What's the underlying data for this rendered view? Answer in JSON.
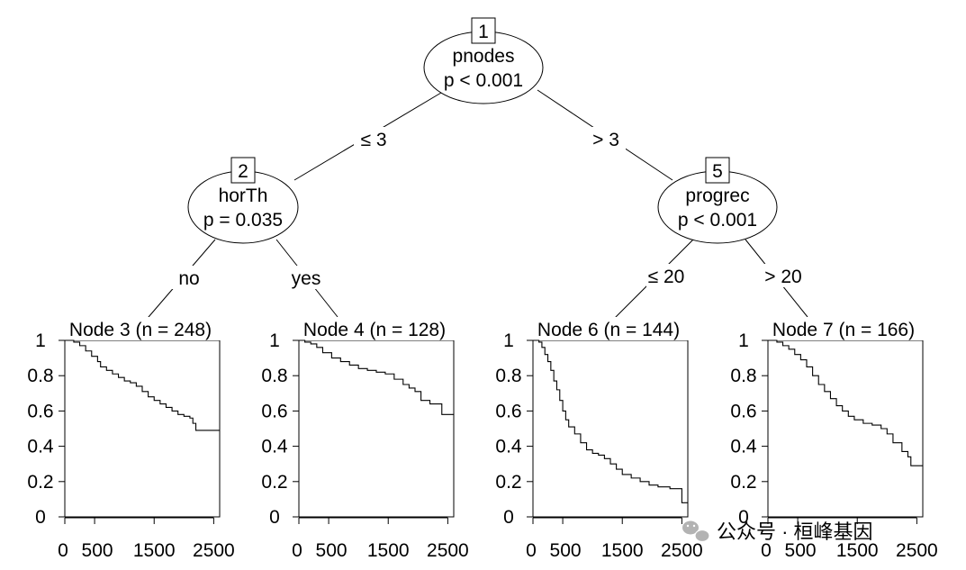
{
  "watermark": "公众号 · 桓峰基因",
  "icons": {
    "watermark_logo": "wechat-icon"
  },
  "chart_data": {
    "type": "tree",
    "inner_nodes": [
      {
        "id": "1",
        "variable": "pnodes",
        "pvalue": "p < 0.001"
      },
      {
        "id": "2",
        "variable": "horTh",
        "pvalue": "p = 0.035"
      },
      {
        "id": "5",
        "variable": "progrec",
        "pvalue": "p < 0.001"
      }
    ],
    "edges": [
      {
        "from": "1",
        "to": "2",
        "label": "≤ 3"
      },
      {
        "from": "1",
        "to": "5",
        "label": "> 3"
      },
      {
        "from": "2",
        "to": "3",
        "label": "no"
      },
      {
        "from": "2",
        "to": "4",
        "label": "yes"
      },
      {
        "from": "5",
        "to": "6",
        "label": "≤ 20"
      },
      {
        "from": "5",
        "to": "7",
        "label": "> 20"
      }
    ],
    "terminal_nodes": [
      {
        "id": "3",
        "title": "Node 3 (n = 248)",
        "type": "line",
        "xlim": [
          0,
          2600
        ],
        "ylim": [
          0,
          1
        ],
        "xticks": [
          0,
          500,
          1500,
          2500
        ],
        "xtick_labels": [
          "0",
          "500",
          "1500",
          "2500"
        ],
        "yticks": [
          0,
          0.2,
          0.4,
          0.6,
          0.8,
          1
        ],
        "ytick_labels": [
          "0",
          "0.2",
          "0.4",
          "0.6",
          "0.8",
          "1"
        ],
        "points": [
          [
            0,
            1
          ],
          [
            150,
            0.99
          ],
          [
            250,
            0.97
          ],
          [
            350,
            0.94
          ],
          [
            450,
            0.91
          ],
          [
            550,
            0.88
          ],
          [
            600,
            0.85
          ],
          [
            700,
            0.83
          ],
          [
            800,
            0.81
          ],
          [
            900,
            0.79
          ],
          [
            1000,
            0.77
          ],
          [
            1100,
            0.76
          ],
          [
            1200,
            0.74
          ],
          [
            1300,
            0.71
          ],
          [
            1400,
            0.68
          ],
          [
            1500,
            0.66
          ],
          [
            1600,
            0.64
          ],
          [
            1700,
            0.62
          ],
          [
            1800,
            0.6
          ],
          [
            1900,
            0.58
          ],
          [
            2000,
            0.57
          ],
          [
            2100,
            0.56
          ],
          [
            2150,
            0.53
          ],
          [
            2200,
            0.49
          ],
          [
            2350,
            0.49
          ],
          [
            2500,
            0.49
          ]
        ]
      },
      {
        "id": "4",
        "title": "Node 4 (n = 128)",
        "type": "line",
        "xlim": [
          0,
          2600
        ],
        "ylim": [
          0,
          1
        ],
        "xticks": [
          0,
          500,
          1500,
          2500
        ],
        "xtick_labels": [
          "0",
          "500",
          "1500",
          "2500"
        ],
        "yticks": [
          0,
          0.2,
          0.4,
          0.6,
          0.8,
          1
        ],
        "ytick_labels": [
          "0",
          "0.2",
          "0.4",
          "0.6",
          "0.8",
          "1"
        ],
        "points": [
          [
            0,
            1
          ],
          [
            100,
            0.99
          ],
          [
            200,
            0.98
          ],
          [
            300,
            0.96
          ],
          [
            400,
            0.93
          ],
          [
            550,
            0.9
          ],
          [
            700,
            0.88
          ],
          [
            850,
            0.86
          ],
          [
            1000,
            0.84
          ],
          [
            1150,
            0.83
          ],
          [
            1300,
            0.82
          ],
          [
            1450,
            0.81
          ],
          [
            1600,
            0.78
          ],
          [
            1750,
            0.75
          ],
          [
            1850,
            0.73
          ],
          [
            1950,
            0.71
          ],
          [
            2050,
            0.66
          ],
          [
            2200,
            0.64
          ],
          [
            2400,
            0.58
          ],
          [
            2500,
            0.58
          ]
        ]
      },
      {
        "id": "6",
        "title": "Node 6 (n = 144)",
        "type": "line",
        "xlim": [
          0,
          2600
        ],
        "ylim": [
          0,
          1
        ],
        "xticks": [
          0,
          500,
          1500,
          2500
        ],
        "xtick_labels": [
          "0",
          "500",
          "1500",
          "2500"
        ],
        "yticks": [
          0,
          0.2,
          0.4,
          0.6,
          0.8,
          1
        ],
        "ytick_labels": [
          "0",
          "0.2",
          "0.4",
          "0.6",
          "0.8",
          "1"
        ],
        "points": [
          [
            0,
            1
          ],
          [
            100,
            0.99
          ],
          [
            150,
            0.96
          ],
          [
            200,
            0.92
          ],
          [
            250,
            0.88
          ],
          [
            300,
            0.83
          ],
          [
            350,
            0.77
          ],
          [
            400,
            0.72
          ],
          [
            450,
            0.66
          ],
          [
            500,
            0.6
          ],
          [
            550,
            0.55
          ],
          [
            600,
            0.51
          ],
          [
            700,
            0.47
          ],
          [
            800,
            0.42
          ],
          [
            900,
            0.38
          ],
          [
            1000,
            0.36
          ],
          [
            1100,
            0.35
          ],
          [
            1200,
            0.33
          ],
          [
            1300,
            0.3
          ],
          [
            1400,
            0.27
          ],
          [
            1500,
            0.24
          ],
          [
            1650,
            0.22
          ],
          [
            1800,
            0.2
          ],
          [
            1950,
            0.18
          ],
          [
            2100,
            0.17
          ],
          [
            2300,
            0.16
          ],
          [
            2450,
            0.16
          ],
          [
            2500,
            0.08
          ]
        ]
      },
      {
        "id": "7",
        "title": "Node 7 (n = 166)",
        "type": "line",
        "xlim": [
          0,
          2600
        ],
        "ylim": [
          0,
          1
        ],
        "xticks": [
          0,
          500,
          1500,
          2500
        ],
        "xtick_labels": [
          "0",
          "500",
          "1500",
          "2500"
        ],
        "yticks": [
          0,
          0.2,
          0.4,
          0.6,
          0.8,
          1
        ],
        "ytick_labels": [
          "0",
          "0.2",
          "0.4",
          "0.6",
          "0.8",
          "1"
        ],
        "points": [
          [
            0,
            1
          ],
          [
            150,
            0.99
          ],
          [
            250,
            0.97
          ],
          [
            350,
            0.95
          ],
          [
            450,
            0.92
          ],
          [
            550,
            0.89
          ],
          [
            650,
            0.85
          ],
          [
            750,
            0.8
          ],
          [
            850,
            0.75
          ],
          [
            950,
            0.71
          ],
          [
            1050,
            0.67
          ],
          [
            1150,
            0.63
          ],
          [
            1250,
            0.6
          ],
          [
            1350,
            0.57
          ],
          [
            1450,
            0.55
          ],
          [
            1600,
            0.53
          ],
          [
            1750,
            0.52
          ],
          [
            1900,
            0.5
          ],
          [
            2000,
            0.47
          ],
          [
            2100,
            0.42
          ],
          [
            2250,
            0.37
          ],
          [
            2350,
            0.34
          ],
          [
            2400,
            0.29
          ],
          [
            2500,
            0.29
          ]
        ]
      }
    ]
  }
}
